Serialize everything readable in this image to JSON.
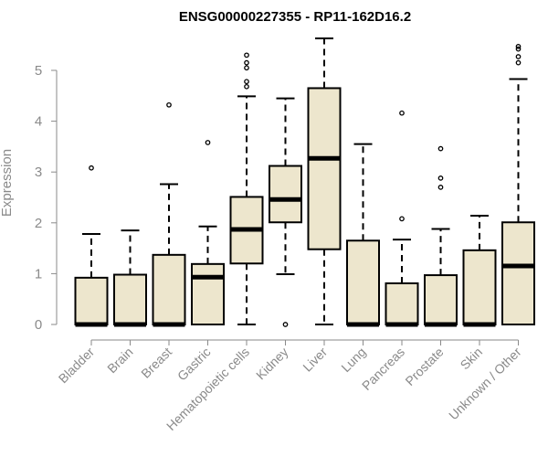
{
  "chart_data": {
    "type": "boxplot",
    "title": "ENSG00000227355 - RP11-162D16.2",
    "xlabel": "",
    "ylabel": "Expression",
    "ylim": [
      0,
      5.6
    ],
    "yticks": [
      0,
      1,
      2,
      3,
      4,
      5
    ],
    "grid": false,
    "colors": {
      "box_fill": "#ede6cd",
      "stroke": "#000000",
      "axis": "#8a8a8a"
    },
    "categories": [
      "Bladder",
      "Brain",
      "Breast",
      "Gastric",
      "Hematopoietic cells",
      "Kidney",
      "Liver",
      "Lung",
      "Pancreas",
      "Prostate",
      "Skin",
      "Unknown / Other"
    ],
    "boxes": [
      {
        "category": "Bladder",
        "whisker_low": 0,
        "q1": 0,
        "median": 0,
        "q3": 0.92,
        "whisker_high": 1.78,
        "outliers": [
          3.08
        ]
      },
      {
        "category": "Brain",
        "whisker_low": 0,
        "q1": 0,
        "median": 0,
        "q3": 0.98,
        "whisker_high": 1.85,
        "outliers": []
      },
      {
        "category": "Breast",
        "whisker_low": 0,
        "q1": 0,
        "median": 0,
        "q3": 1.37,
        "whisker_high": 2.76,
        "outliers": [
          4.32
        ]
      },
      {
        "category": "Gastric",
        "whisker_low": 0,
        "q1": 0,
        "median": 0.93,
        "q3": 1.19,
        "whisker_high": 1.93,
        "outliers": [
          3.58
        ]
      },
      {
        "category": "Hematopoietic cells",
        "whisker_low": 0,
        "q1": 1.2,
        "median": 1.87,
        "q3": 2.51,
        "whisker_high": 4.49,
        "outliers": [
          4.68,
          4.78,
          5.05,
          5.15,
          5.3
        ]
      },
      {
        "category": "Kidney",
        "whisker_low": 0.99,
        "q1": 2.01,
        "median": 2.46,
        "q3": 3.12,
        "whisker_high": 4.45,
        "outliers": [
          0
        ]
      },
      {
        "category": "Liver",
        "whisker_low": 0,
        "q1": 1.48,
        "median": 3.27,
        "q3": 4.65,
        "whisker_high": 5.63,
        "outliers": []
      },
      {
        "category": "Lung",
        "whisker_low": 0,
        "q1": 0,
        "median": 0,
        "q3": 1.65,
        "whisker_high": 3.55,
        "outliers": []
      },
      {
        "category": "Pancreas",
        "whisker_low": 0,
        "q1": 0,
        "median": 0,
        "q3": 0.81,
        "whisker_high": 1.67,
        "outliers": [
          2.08,
          4.16
        ]
      },
      {
        "category": "Prostate",
        "whisker_low": 0,
        "q1": 0,
        "median": 0,
        "q3": 0.97,
        "whisker_high": 1.88,
        "outliers": [
          2.7,
          2.88,
          3.46
        ]
      },
      {
        "category": "Skin",
        "whisker_low": 0,
        "q1": 0,
        "median": 0,
        "q3": 1.46,
        "whisker_high": 2.14,
        "outliers": []
      },
      {
        "category": "Unknown / Other",
        "whisker_low": 0,
        "q1": 0,
        "median": 1.15,
        "q3": 2.01,
        "whisker_high": 4.83,
        "outliers": [
          5.15,
          5.27,
          5.42,
          5.47
        ]
      }
    ]
  }
}
